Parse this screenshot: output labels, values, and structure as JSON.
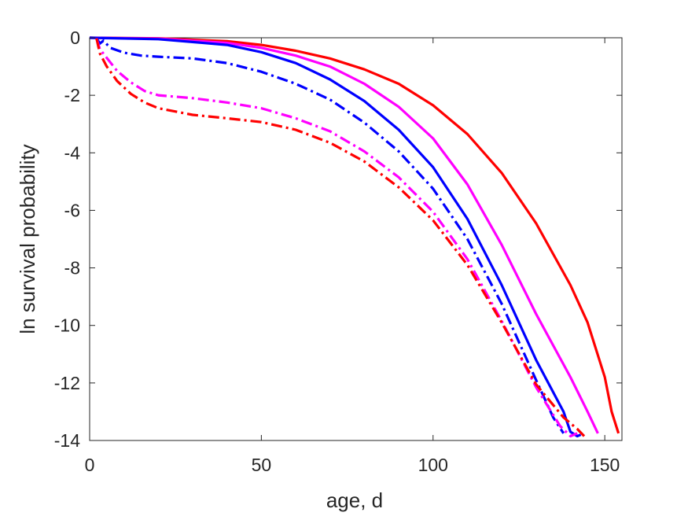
{
  "chart_data": {
    "type": "line",
    "title": "",
    "xlabel": "age, d",
    "ylabel": "ln survival probability",
    "xlim": [
      0,
      155
    ],
    "ylim": [
      -14,
      0
    ],
    "xticks": [
      0,
      50,
      100,
      150
    ],
    "xtick_labels": [
      "0",
      "50",
      "100",
      "150"
    ],
    "yticks": [
      0,
      -2,
      -4,
      -6,
      -8,
      -10,
      -12,
      -14
    ],
    "ytick_labels": [
      "0",
      "-2",
      "-4",
      "-6",
      "-8",
      "-10",
      "-12",
      "-14"
    ],
    "grid": false,
    "legend": "none",
    "series": [
      {
        "color": "#ff0000",
        "style": "solid",
        "points": [
          [
            0,
            0
          ],
          [
            20,
            -0.02
          ],
          [
            40,
            -0.12
          ],
          [
            50,
            -0.25
          ],
          [
            60,
            -0.45
          ],
          [
            70,
            -0.72
          ],
          [
            80,
            -1.1
          ],
          [
            90,
            -1.6
          ],
          [
            100,
            -2.35
          ],
          [
            110,
            -3.35
          ],
          [
            120,
            -4.7
          ],
          [
            130,
            -6.45
          ],
          [
            140,
            -8.6
          ],
          [
            145,
            -9.9
          ],
          [
            150,
            -11.8
          ],
          [
            152,
            -13.0
          ],
          [
            154,
            -13.75
          ]
        ]
      },
      {
        "color": "#ff00ff",
        "style": "solid",
        "points": [
          [
            0,
            0
          ],
          [
            20,
            -0.03
          ],
          [
            40,
            -0.18
          ],
          [
            50,
            -0.35
          ],
          [
            60,
            -0.62
          ],
          [
            70,
            -1.0
          ],
          [
            80,
            -1.6
          ],
          [
            90,
            -2.4
          ],
          [
            100,
            -3.5
          ],
          [
            110,
            -5.1
          ],
          [
            120,
            -7.2
          ],
          [
            130,
            -9.6
          ],
          [
            140,
            -11.8
          ],
          [
            145,
            -13.0
          ],
          [
            148,
            -13.75
          ]
        ]
      },
      {
        "color": "#0000ff",
        "style": "solid",
        "points": [
          [
            0,
            0
          ],
          [
            20,
            -0.05
          ],
          [
            40,
            -0.25
          ],
          [
            50,
            -0.5
          ],
          [
            60,
            -0.88
          ],
          [
            70,
            -1.45
          ],
          [
            80,
            -2.2
          ],
          [
            90,
            -3.2
          ],
          [
            100,
            -4.5
          ],
          [
            110,
            -6.3
          ],
          [
            120,
            -8.6
          ],
          [
            130,
            -11.2
          ],
          [
            138,
            -13.0
          ],
          [
            140,
            -13.7
          ],
          [
            142,
            -13.85
          ],
          [
            143,
            -13.8
          ]
        ]
      },
      {
        "color": "#0000ff",
        "style": "dashdot",
        "points": [
          [
            2,
            -0.02
          ],
          [
            3,
            -0.2
          ],
          [
            4,
            -0.1
          ],
          [
            6,
            -0.35
          ],
          [
            10,
            -0.52
          ],
          [
            15,
            -0.62
          ],
          [
            20,
            -0.66
          ],
          [
            30,
            -0.72
          ],
          [
            40,
            -0.88
          ],
          [
            50,
            -1.18
          ],
          [
            60,
            -1.6
          ],
          [
            70,
            -2.15
          ],
          [
            80,
            -2.95
          ],
          [
            90,
            -3.95
          ],
          [
            100,
            -5.25
          ],
          [
            110,
            -7.0
          ],
          [
            120,
            -9.25
          ],
          [
            130,
            -11.9
          ],
          [
            135,
            -13.2
          ],
          [
            138,
            -13.75
          ]
        ]
      },
      {
        "color": "#ff00ff",
        "style": "dashdot",
        "points": [
          [
            2,
            -0.02
          ],
          [
            3,
            -0.4
          ],
          [
            5,
            -0.7
          ],
          [
            8,
            -1.15
          ],
          [
            12,
            -1.55
          ],
          [
            16,
            -1.85
          ],
          [
            20,
            -2.0
          ],
          [
            30,
            -2.1
          ],
          [
            40,
            -2.25
          ],
          [
            50,
            -2.45
          ],
          [
            60,
            -2.8
          ],
          [
            70,
            -3.25
          ],
          [
            80,
            -3.95
          ],
          [
            90,
            -4.85
          ],
          [
            100,
            -6.05
          ],
          [
            110,
            -7.7
          ],
          [
            120,
            -9.85
          ],
          [
            130,
            -12.15
          ],
          [
            137,
            -13.5
          ],
          [
            140,
            -13.85
          ],
          [
            142,
            -13.75
          ]
        ]
      },
      {
        "color": "#ff0000",
        "style": "dashdot",
        "points": [
          [
            2,
            -0.02
          ],
          [
            3,
            -0.55
          ],
          [
            5,
            -1.0
          ],
          [
            8,
            -1.5
          ],
          [
            12,
            -1.95
          ],
          [
            16,
            -2.25
          ],
          [
            20,
            -2.45
          ],
          [
            30,
            -2.68
          ],
          [
            40,
            -2.8
          ],
          [
            50,
            -2.93
          ],
          [
            60,
            -3.2
          ],
          [
            70,
            -3.65
          ],
          [
            80,
            -4.3
          ],
          [
            90,
            -5.2
          ],
          [
            100,
            -6.35
          ],
          [
            110,
            -7.9
          ],
          [
            120,
            -9.9
          ],
          [
            130,
            -12.05
          ],
          [
            138,
            -13.2
          ],
          [
            142,
            -13.6
          ],
          [
            144,
            -13.85
          ]
        ]
      }
    ]
  }
}
